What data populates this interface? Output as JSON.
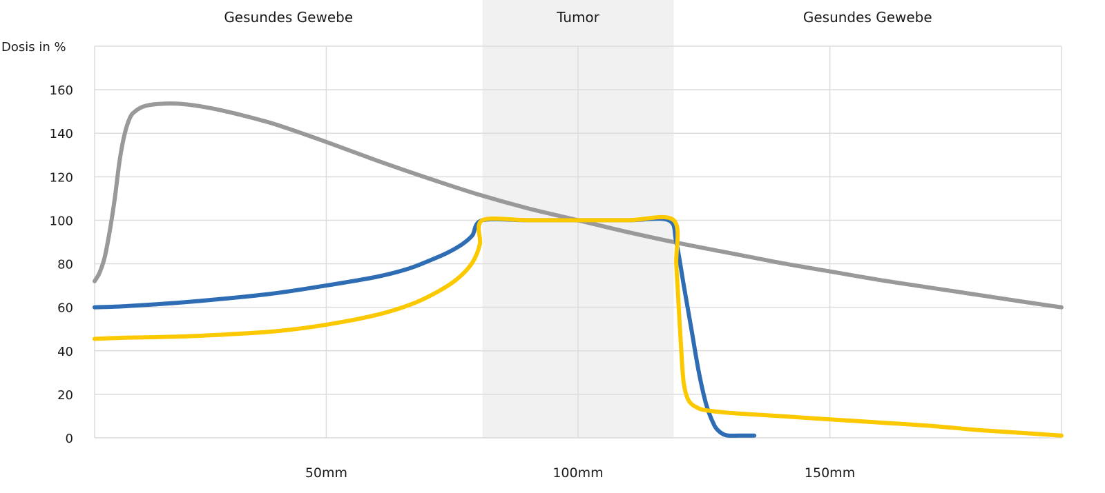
{
  "chart_data": {
    "type": "line",
    "ylabel": "Dosis in %",
    "ylim": [
      0,
      180
    ],
    "yticks": [
      0,
      20,
      40,
      60,
      80,
      100,
      120,
      140,
      160
    ],
    "xlim": [
      4,
      196
    ],
    "xticks": [
      {
        "value": 50,
        "label": "50mm"
      },
      {
        "value": 100,
        "label": "100mm"
      },
      {
        "value": 150,
        "label": "150mm"
      }
    ],
    "grid": true,
    "regions": [
      {
        "label": "Gesundes Gewebe",
        "x_start": 4,
        "x_end": 81,
        "shaded": false,
        "color": "#ffffff"
      },
      {
        "label": "Tumor",
        "x_start": 81,
        "x_end": 119,
        "shaded": true,
        "color": "#f1f1f1"
      },
      {
        "label": "Gesundes Gewebe",
        "x_start": 119,
        "x_end": 196,
        "shaded": false,
        "color": "#ffffff"
      }
    ],
    "series": [
      {
        "color": "#999999",
        "x": [
          4,
          5,
          6,
          7,
          8,
          9,
          10,
          11,
          12,
          14,
          17,
          21,
          26,
          32,
          40,
          50,
          60,
          70,
          80,
          90,
          100,
          110,
          120,
          130,
          140,
          150,
          160,
          170,
          180,
          190,
          196
        ],
        "y": [
          72,
          76,
          83,
          95,
          110,
          128,
          140,
          147,
          150,
          152.5,
          153.5,
          153.5,
          152,
          149,
          144,
          136,
          127.5,
          119.5,
          112,
          105.5,
          100,
          94.5,
          89.5,
          85,
          80.5,
          76.5,
          72.5,
          69,
          65.5,
          62,
          60
        ]
      },
      {
        "color": "#2e6db4",
        "x": [
          4,
          10,
          20,
          30,
          40,
          50,
          60,
          66,
          70,
          74,
          77,
          79,
          81,
          90,
          100,
          110,
          118,
          119.5,
          121,
          122.5,
          124,
          125.5,
          127,
          128,
          129,
          130,
          132,
          135
        ],
        "y": [
          60,
          60.5,
          62,
          64,
          66.5,
          70,
          74,
          77.5,
          81,
          85,
          89,
          93,
          100,
          100,
          100,
          100,
          100,
          90,
          70,
          50,
          30,
          15,
          6,
          3,
          1.5,
          1,
          1,
          1
        ]
      },
      {
        "color": "#fcc900",
        "x": [
          4,
          10,
          20,
          30,
          40,
          50,
          60,
          67,
          72,
          76,
          79,
          80.5,
          81,
          90,
          100,
          110,
          119,
          119.5,
          120,
          120.5,
          121,
          122,
          124,
          126,
          130,
          140,
          150,
          160,
          170,
          180,
          190,
          196
        ],
        "y": [
          45.5,
          46,
          46.5,
          47.5,
          49,
          52,
          56.5,
          61.5,
          67,
          73,
          80.5,
          89,
          100,
          100,
          100,
          100,
          100,
          80,
          60,
          40,
          25,
          17,
          13.5,
          12.5,
          11.5,
          10,
          8.5,
          7,
          5.5,
          3.5,
          2,
          1
        ]
      }
    ]
  }
}
